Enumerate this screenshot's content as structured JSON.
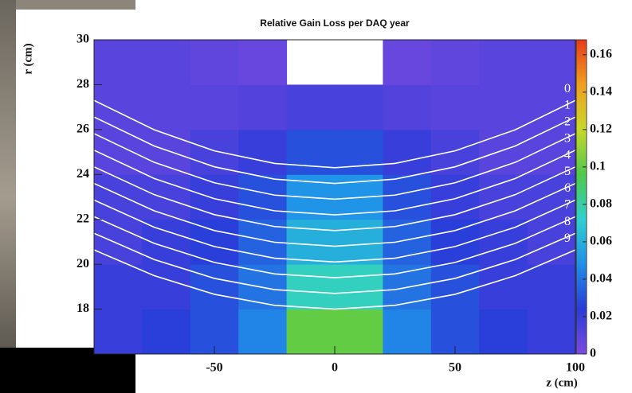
{
  "chart_data": {
    "type": "heatmap",
    "title": "Relative Gain Loss per DAQ year",
    "x_label": "z (cm)",
    "y_label": "r (cm)",
    "xlim": [
      -100,
      100
    ],
    "xticks": [
      -50,
      0,
      50,
      100
    ],
    "ylim": [
      16,
      30
    ],
    "yticks": [
      18,
      20,
      22,
      24,
      26,
      28,
      30
    ],
    "zlim": [
      0,
      0.168
    ],
    "zticks": [
      0,
      0.02,
      0.04,
      0.06,
      0.08,
      0.1,
      0.12,
      0.14,
      0.16
    ],
    "colorscale": [
      "#7b4be0",
      "#2a3bd8",
      "#1f8fe8",
      "#2fd0d0",
      "#4ec94a",
      "#c8d82a",
      "#f0a020",
      "#e83a1a"
    ],
    "x_bins": [
      -100,
      -80,
      -60,
      -40,
      -20,
      0,
      20,
      40,
      60,
      80,
      100
    ],
    "y_bins": [
      16,
      18,
      20,
      22,
      24,
      26,
      28,
      30
    ],
    "z": [
      [
        0.02,
        0.025,
        0.03,
        0.045,
        0.1,
        0.1,
        0.045,
        0.03,
        0.025,
        0.02
      ],
      [
        0.02,
        0.02,
        0.03,
        0.04,
        0.075,
        0.075,
        0.04,
        0.03,
        0.02,
        0.02
      ],
      [
        0.015,
        0.02,
        0.025,
        0.035,
        0.06,
        0.06,
        0.035,
        0.025,
        0.02,
        0.015
      ],
      [
        0.015,
        0.015,
        0.02,
        0.03,
        0.05,
        0.05,
        0.03,
        0.02,
        0.015,
        0.015
      ],
      [
        0.01,
        0.01,
        0.015,
        0.02,
        0.03,
        0.03,
        0.02,
        0.015,
        0.01,
        0.01
      ],
      [
        0.01,
        0.01,
        0.01,
        0.012,
        0.015,
        0.015,
        0.012,
        0.01,
        0.01,
        0.01
      ],
      [
        0.01,
        0.01,
        0.008,
        0.006,
        null,
        null,
        0.006,
        0.008,
        0.01,
        0.01
      ]
    ],
    "x": [
      -100,
      -75,
      -50,
      -25,
      0,
      25,
      50,
      75,
      100
    ],
    "series": [
      {
        "name": "0",
        "color": "#ffffff",
        "values": [
          27.3,
          25.99,
          25.05,
          24.49,
          24.3,
          24.49,
          25.05,
          25.99,
          27.3
        ]
      },
      {
        "name": "1",
        "color": "#ffffff",
        "values": [
          26.56,
          25.27,
          24.34,
          23.79,
          23.6,
          23.79,
          24.34,
          25.27,
          26.56
        ]
      },
      {
        "name": "2",
        "color": "#ffffff",
        "values": [
          25.82,
          24.54,
          23.63,
          23.08,
          22.9,
          23.08,
          23.63,
          24.54,
          25.82
        ]
      },
      {
        "name": "3",
        "color": "#ffffff",
        "values": [
          25.08,
          23.82,
          22.92,
          22.38,
          22.2,
          22.38,
          22.92,
          23.82,
          25.08
        ]
      },
      {
        "name": "4",
        "color": "#ffffff",
        "values": [
          24.34,
          23.1,
          22.21,
          21.68,
          21.5,
          21.68,
          22.21,
          23.1,
          24.34
        ]
      },
      {
        "name": "5",
        "color": "#ffffff",
        "values": [
          23.6,
          22.38,
          21.5,
          20.98,
          20.8,
          20.98,
          21.5,
          22.38,
          23.6
        ]
      },
      {
        "name": "6",
        "color": "#ffffff",
        "values": [
          22.86,
          21.65,
          20.79,
          20.27,
          20.1,
          20.27,
          20.79,
          21.65,
          22.86
        ]
      },
      {
        "name": "7",
        "color": "#ffffff",
        "values": [
          22.12,
          20.93,
          20.08,
          19.57,
          19.4,
          19.57,
          20.08,
          20.93,
          22.12
        ]
      },
      {
        "name": "8",
        "color": "#ffffff",
        "values": [
          21.38,
          20.21,
          19.37,
          18.87,
          18.7,
          18.87,
          19.37,
          20.21,
          21.38
        ]
      },
      {
        "name": "9",
        "color": "#ffffff",
        "values": [
          20.64,
          19.49,
          18.66,
          18.17,
          18.0,
          18.17,
          18.66,
          19.49,
          20.64
        ]
      }
    ]
  }
}
